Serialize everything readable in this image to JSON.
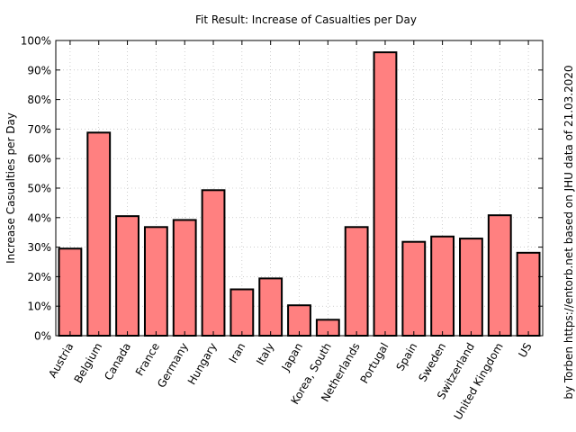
{
  "chart_data": {
    "type": "bar",
    "title": "Fit Result: Increase of Casualties per Day",
    "ylabel": "Increase Casualties per Day",
    "xlabel": "",
    "side_note": "by Torben https://entorb.net based on JHU data of 21.03.2020",
    "categories": [
      "Austria",
      "Belgium",
      "Canada",
      "France",
      "Germany",
      "Hungary",
      "Iran",
      "Italy",
      "Japan",
      "Korea, South",
      "Netherlands",
      "Portugal",
      "Spain",
      "Sweden",
      "Switzerland",
      "United Kingdom",
      "US"
    ],
    "values": [
      29.5,
      68.8,
      40.5,
      36.8,
      39.2,
      49.3,
      15.7,
      19.4,
      10.3,
      5.4,
      36.8,
      96.0,
      31.8,
      33.6,
      32.9,
      40.8,
      28.1
    ],
    "ylim": [
      0,
      100
    ],
    "yticks": [
      "0%",
      "10%",
      "20%",
      "30%",
      "40%",
      "50%",
      "60%",
      "70%",
      "80%",
      "90%",
      "100%"
    ],
    "grid": true,
    "bar_color": "#ff8080"
  }
}
